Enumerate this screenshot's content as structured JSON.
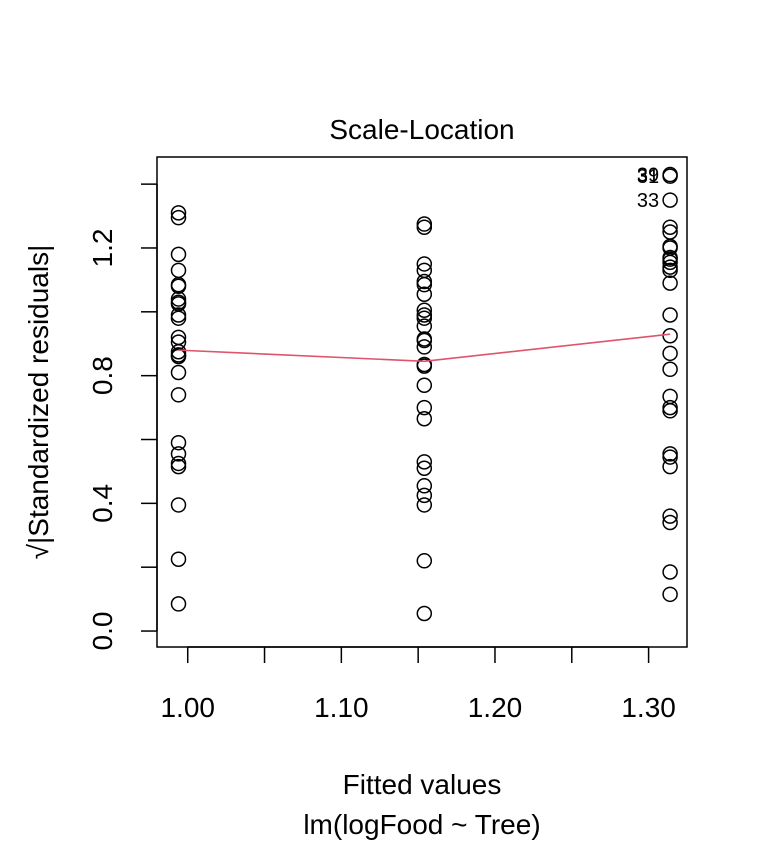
{
  "chart_data": {
    "type": "scatter",
    "title": "Scale-Location",
    "xlabel": "Fitted values",
    "xlabel_sub": "lm(logFood ~ Tree)",
    "ylabel": "√|Standardized residuals|",
    "xlim": [
      0.98,
      1.325
    ],
    "ylim": [
      -0.05,
      1.485
    ],
    "x_ticks": [
      1.0,
      1.05,
      1.1,
      1.15,
      1.2,
      1.25,
      1.3
    ],
    "x_tick_labels": [
      "1.00",
      "1.10",
      "1.20",
      "1.30"
    ],
    "x_tick_label_values": [
      1.0,
      1.1,
      1.2,
      1.3
    ],
    "y_ticks": [
      0.0,
      0.2,
      0.4,
      0.6,
      0.8,
      1.0,
      1.2,
      1.4
    ],
    "y_tick_labels": [
      "0.0",
      "0.4",
      "0.8",
      "1.2"
    ],
    "y_tick_label_values": [
      0.0,
      0.4,
      0.8,
      1.2
    ],
    "series": [
      {
        "x": 0.994,
        "y": [
          1.31,
          1.295,
          1.18,
          1.13,
          1.085,
          1.08,
          1.04,
          1.03,
          1.025,
          0.99,
          0.98,
          0.92,
          0.905,
          0.875,
          0.865,
          0.86,
          0.81,
          0.74,
          0.59,
          0.555,
          0.525,
          0.515,
          0.395,
          0.225,
          0.085
        ]
      },
      {
        "x": 1.154,
        "y": [
          1.275,
          1.265,
          1.15,
          1.13,
          1.095,
          1.085,
          1.055,
          1.005,
          0.99,
          0.98,
          0.955,
          0.915,
          0.91,
          0.89,
          0.835,
          0.83,
          0.77,
          0.7,
          0.665,
          0.53,
          0.51,
          0.455,
          0.425,
          0.395,
          0.22,
          0.055
        ]
      },
      {
        "x": 1.314,
        "y": [
          1.43,
          1.425,
          1.35,
          1.265,
          1.25,
          1.205,
          1.2,
          1.17,
          1.165,
          1.155,
          1.14,
          1.13,
          1.09,
          0.99,
          0.925,
          0.87,
          0.82,
          0.735,
          0.7,
          0.69,
          0.555,
          0.545,
          0.515,
          0.36,
          0.34,
          0.185,
          0.115
        ]
      }
    ],
    "smoother": {
      "color": "#DF536B",
      "x": [
        0.994,
        1.154,
        1.314
      ],
      "y": [
        0.88,
        0.845,
        0.93
      ]
    },
    "annotations": [
      {
        "label": "39",
        "x": 1.314,
        "y": 1.43,
        "position": "left"
      },
      {
        "label": "31",
        "x": 1.314,
        "y": 1.425,
        "position": "left"
      },
      {
        "label": "33",
        "x": 1.314,
        "y": 1.35,
        "position": "left"
      }
    ]
  }
}
